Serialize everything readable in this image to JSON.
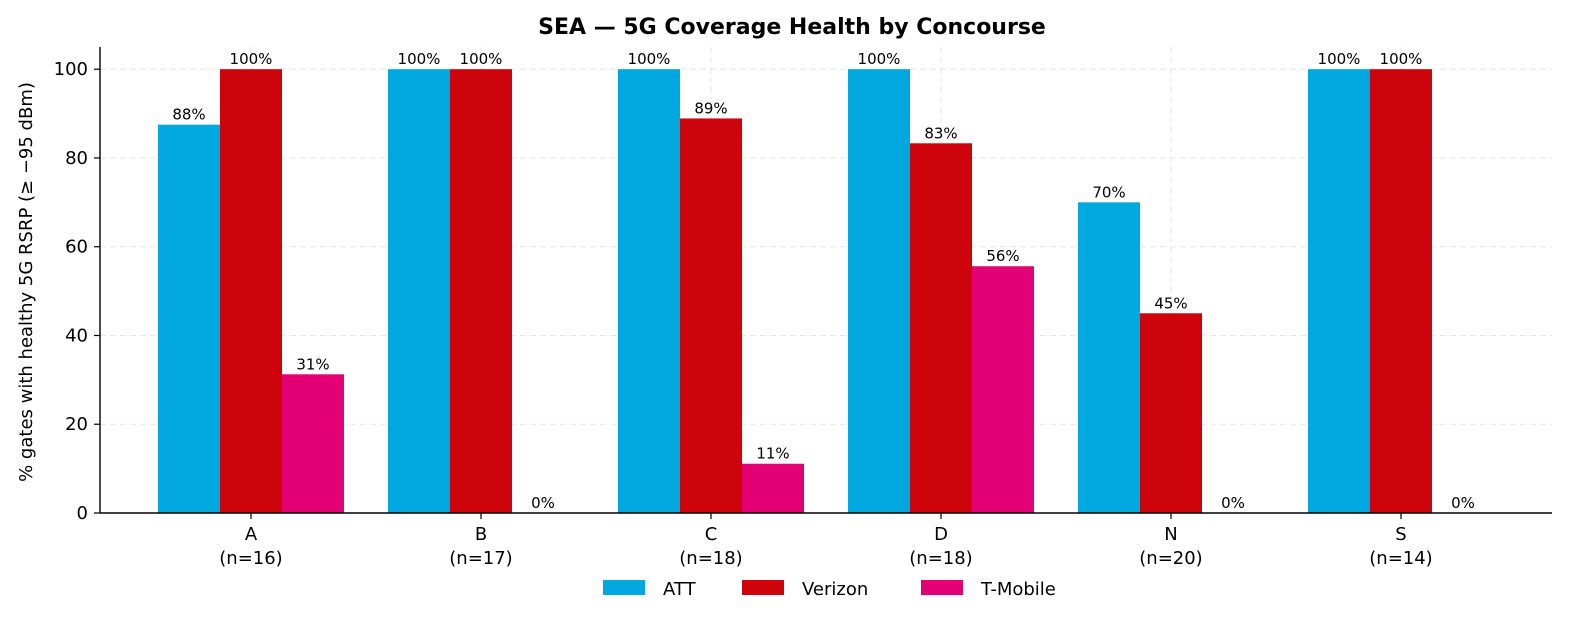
{
  "chart_data": {
    "type": "bar",
    "title": "SEA — 5G Coverage Health by Concourse",
    "xlabel": "",
    "ylabel": "% gates with healthy 5G RSRP (≥ −95 dBm)",
    "ylim": [
      0,
      105
    ],
    "yticks": [
      "0",
      "20",
      "40",
      "60",
      "80",
      "100"
    ],
    "categories": [
      "A",
      "B",
      "C",
      "D",
      "N",
      "S"
    ],
    "category_counts": [
      "(n=16)",
      "(n=17)",
      "(n=18)",
      "(n=18)",
      "(n=20)",
      "(n=14)"
    ],
    "series": [
      {
        "name": "ATT",
        "color": "#00a8e0",
        "values": [
          87.5,
          100,
          100,
          100,
          70,
          100
        ],
        "labels": [
          "88%",
          "100%",
          "100%",
          "100%",
          "70%",
          "100%"
        ]
      },
      {
        "name": "Verizon",
        "color": "#cd040b",
        "values": [
          100,
          100,
          88.9,
          83.3,
          45,
          100
        ],
        "labels": [
          "100%",
          "100%",
          "89%",
          "83%",
          "45%",
          "100%"
        ]
      },
      {
        "name": "T-Mobile",
        "color": "#e20074",
        "values": [
          31.25,
          0,
          11.1,
          55.6,
          0,
          0
        ],
        "labels": [
          "31%",
          "0%",
          "11%",
          "56%",
          "0%",
          "0%"
        ]
      }
    ],
    "grid": true,
    "legend_position": "bottom-center"
  }
}
